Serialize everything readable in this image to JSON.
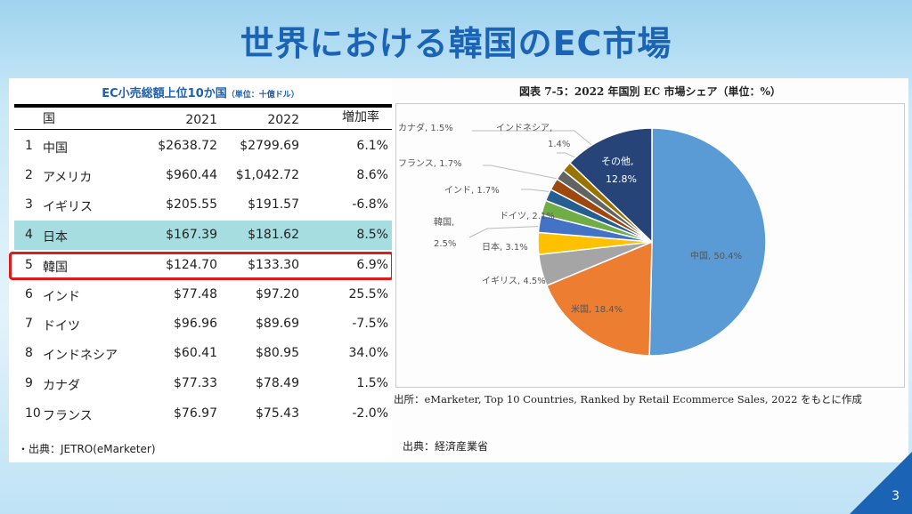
{
  "title": "世界における韓国のEC市場",
  "table": {
    "caption": "EC小売総額上位10か国",
    "unit": "（単位：十億ドル）",
    "headers": [
      "国",
      "2021",
      "2022",
      "増加率"
    ],
    "rows": [
      [
        "1",
        "中国",
        "$2638.72",
        "$2799.69",
        "6.1%"
      ],
      [
        "2",
        "アメリカ",
        "$960.44",
        "$1,042.72",
        "8.6%"
      ],
      [
        "3",
        "イギリス",
        "$205.55",
        "$191.57",
        "-6.8%"
      ],
      [
        "4",
        "日本",
        "$167.39",
        "$181.62",
        "8.5%"
      ],
      [
        "5",
        "韓国",
        "$124.70",
        "$133.30",
        "6.9%"
      ],
      [
        "6",
        "インド",
        "$77.48",
        "$97.20",
        "25.5%"
      ],
      [
        "7",
        "ドイツ",
        "$96.96",
        "$89.69",
        "-7.5%"
      ],
      [
        "8",
        "インドネシア",
        "$60.41",
        "$80.95",
        "34.0%"
      ],
      [
        "9",
        "カナダ",
        "$77.33",
        "$78.49",
        "1.5%"
      ],
      [
        "10",
        "フランス",
        "$76.97",
        "$75.43",
        "-2.0%"
      ]
    ],
    "highlight_color": "#a6dde0",
    "box_color": "#e01b1b",
    "source": "・出典：JETRO(eMarketer)"
  },
  "chart_data": {
    "type": "pie",
    "title": "図表 7-5：2022 年国別 EC 市場シェア（単位：%）",
    "slices": [
      {
        "label": "中国",
        "value": 50.4,
        "text": "中国, 50.4%",
        "color": "#5b9bd5"
      },
      {
        "label": "米国",
        "value": 18.4,
        "text": "米国, 18.4%",
        "color": "#ed7d31"
      },
      {
        "label": "イギリス",
        "value": 4.5,
        "text": "イギリス, 4.5%",
        "color": "#a5a5a5"
      },
      {
        "label": "日本",
        "value": 3.1,
        "text": "日本, 3.1%",
        "color": "#ffc000"
      },
      {
        "label": "韓国",
        "value": 2.5,
        "text": "韓国,",
        "text2": "2.5%",
        "color": "#4472c4"
      },
      {
        "label": "ドイツ",
        "value": 2.1,
        "text": "ドイツ, 2.1%",
        "color": "#70ad47"
      },
      {
        "label": "インド",
        "value": 1.7,
        "text": "インド, 1.7%",
        "color": "#255e91"
      },
      {
        "label": "フランス",
        "value": 1.7,
        "text": "フランス, 1.7%",
        "color": "#9e480e"
      },
      {
        "label": "カナダ",
        "value": 1.5,
        "text": "カナダ, 1.5%",
        "color": "#636363"
      },
      {
        "label": "インドネシア",
        "value": 1.4,
        "text": "インドネシア,",
        "text2": "1.4%",
        "color": "#997300"
      },
      {
        "label": "その他",
        "value": 12.8,
        "text": "その他,",
        "text2": "12.8%",
        "color": "#264478"
      }
    ],
    "note": "出所：eMarketer, Top 10 Countries, Ranked by Retail Ecommerce Sales, 2022 をもとに作成",
    "source": "出典：経済産業省"
  },
  "page_number": "3"
}
